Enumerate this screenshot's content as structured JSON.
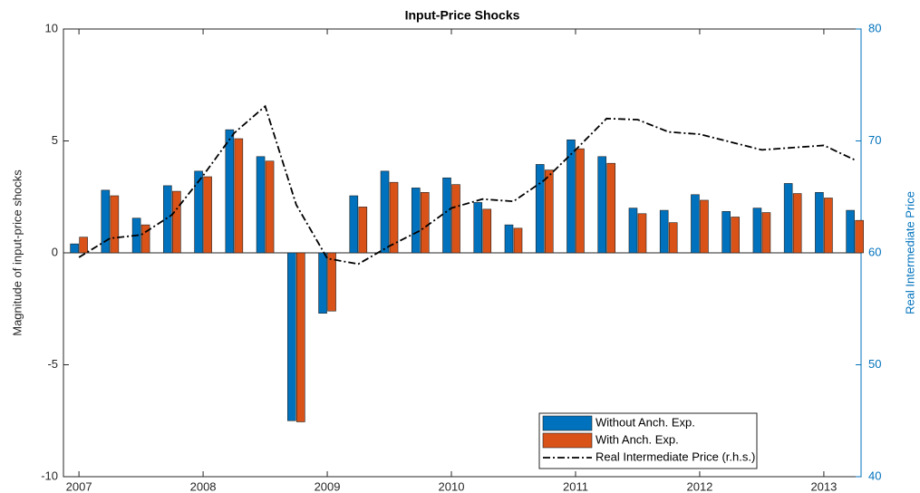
{
  "chart_data": {
    "type": "bar",
    "title": "Input-Price Shocks",
    "y_label": "Magnitude of input-price shocks",
    "y2_label": "Real Intermediate Price",
    "x": [
      2007,
      2007.25,
      2007.5,
      2007.75,
      2008,
      2008.25,
      2008.5,
      2008.75,
      2009,
      2009.25,
      2009.5,
      2009.75,
      2010,
      2010.25,
      2010.5,
      2010.75,
      2011,
      2011.25,
      2011.5,
      2011.75,
      2012,
      2012.25,
      2012.5,
      2012.75,
      2013,
      2013.25
    ],
    "series": [
      {
        "name": "Without Anch. Exp.",
        "color": "#0072bd",
        "values": [
          0.4,
          2.8,
          1.55,
          3.0,
          3.65,
          5.5,
          4.3,
          -7.5,
          -2.7,
          2.55,
          3.65,
          2.9,
          3.35,
          2.25,
          1.25,
          3.95,
          5.05,
          4.3,
          2.0,
          1.9,
          2.6,
          1.85,
          2.0,
          3.1,
          2.7,
          1.9
        ]
      },
      {
        "name": "With Anch. Exp.",
        "color": "#d95319",
        "values": [
          0.7,
          2.55,
          1.25,
          2.75,
          3.4,
          5.1,
          4.1,
          -7.55,
          -2.6,
          2.05,
          3.15,
          2.7,
          3.05,
          1.95,
          1.1,
          3.7,
          4.65,
          4.0,
          1.75,
          1.35,
          2.35,
          1.6,
          1.8,
          2.65,
          2.45,
          1.45
        ]
      },
      {
        "name": "Real Intermediate Price (r.h.s.)",
        "color": "#000000",
        "type": "line",
        "axis": "y2",
        "values": [
          59.6,
          61.3,
          61.6,
          63.4,
          66.9,
          70.7,
          73.1,
          64.3,
          59.5,
          59.0,
          60.6,
          62.0,
          64.0,
          64.8,
          64.6,
          66.5,
          69.2,
          72.0,
          71.9,
          70.8,
          70.6,
          69.9,
          69.2,
          69.4,
          69.6,
          68.3
        ]
      }
    ],
    "xlim": [
      2006.875,
      2013.3
    ],
    "xticks": [
      2007,
      2008,
      2009,
      2010,
      2011,
      2012,
      2013
    ],
    "ylim": [
      -10,
      10
    ],
    "yticks": [
      -10,
      -5,
      0,
      5,
      10
    ],
    "y2lim": [
      40,
      80
    ],
    "y2ticks": [
      40,
      50,
      60,
      70,
      80
    ],
    "y2_color": "#0072bd"
  }
}
